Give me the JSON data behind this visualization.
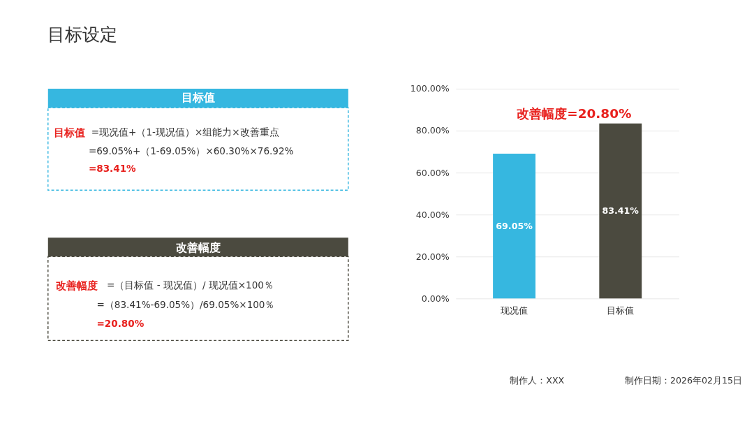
{
  "chart_data": {
    "type": "bar",
    "title": "目标设定",
    "categories": [
      "现况值",
      "目标值"
    ],
    "values": [
      69.05,
      83.41
    ],
    "colors": [
      "#36b7e0",
      "#4b4a3f"
    ],
    "value_labels": [
      "69.05%",
      "83.41%"
    ],
    "ylim": [
      0,
      100
    ],
    "yticks": [
      {
        "value": 0,
        "label": "0.00%"
      },
      {
        "value": 20,
        "label": "20.00%"
      },
      {
        "value": 40,
        "label": "40.00%"
      },
      {
        "value": 60,
        "label": "60.00%"
      },
      {
        "value": 80,
        "label": "80.00%"
      },
      {
        "value": 100,
        "label": "100.00%"
      }
    ],
    "grid": "y",
    "annotations": [
      "改善幅度=20.80%",
      "目标值",
      "目标值",
      "=现况值+（1-现况值）×组能力×改善重点",
      "=69.05%+（1-69.05%）×60.30%×76.92%",
      "=83.41%",
      "改善幅度",
      "改善幅度",
      "=（目标值 - 现况值）/ 现况值×100％",
      "=（83.41%-69.05%）/69.05%×100％",
      "=20.80%",
      "制作人：XXX",
      "制作日期：2026年02月15日"
    ]
  }
}
